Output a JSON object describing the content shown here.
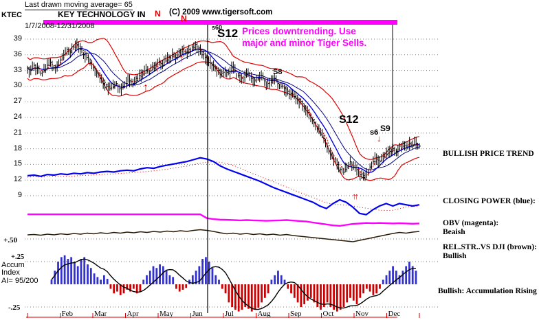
{
  "header": {
    "ma_note": "Last drawn moving average= 65",
    "ticker": "KTEC",
    "title": "KEY TECHNOLOGY IN",
    "copyright": "(C) 2009 www.tigersoft.com",
    "date_range": "1/7/2008-12/31/2008"
  },
  "annotation": {
    "line1": "Prices downtrending.  Use",
    "line2": "major and minor Tiger Sells.",
    "color": "#ff00ff"
  },
  "signals": {
    "n": "N",
    "s60": "s60",
    "s12_top": "S12",
    "s8": "S8",
    "s12_mid": "S12",
    "s6": "s6",
    "s9": "S9"
  },
  "icons": {
    "up_arrow": "↑",
    "double_up_arrow": "↑↑",
    "down_arrow": "↓"
  },
  "right_panel": {
    "price_trend": "BULLISH PRICE TREND",
    "closing_power": "CLOSING POWER (blue):",
    "obv_label": "OBV (magenta):",
    "obv_status": "Beaish",
    "relstr_label": "REL.STR..VS DJI (brown):",
    "relstr_status": "Bullish",
    "accum_status": "Bullish: Accumulation Rising"
  },
  "left_labels": {
    "plus50": "+.50",
    "plus25": "+.25",
    "accum_line1": "Accum",
    "accum_line2": "Index",
    "ai_value": "AI= 95/200",
    "minus25": "-.25"
  },
  "chart_data": {
    "type": "line",
    "subtype": "daily stock OHLC chart with band lines and indicator panels",
    "title": "KEY TECHNOLOGY IN (KTEC) 1/7/2008-12/31/2008",
    "price_axis_ticks": [
      39,
      36,
      33,
      30,
      27,
      24,
      21,
      18,
      15,
      12,
      9
    ],
    "price_ylim": [
      8,
      41
    ],
    "months": [
      "Feb",
      "Mar",
      "Apr",
      "May",
      "Jun",
      "Jul",
      "Aug",
      "Sep",
      "Oct",
      "Nov",
      "Dec"
    ],
    "accum_axis_ticks": [
      0.5,
      0.25,
      -0.25
    ],
    "series": [
      {
        "name": "close",
        "units": "USD",
        "values": [
          33.5,
          33,
          34,
          33.5,
          32.5,
          33,
          34,
          34.5,
          33.5,
          34,
          35,
          36,
          37,
          36.5,
          37.5,
          38,
          37,
          36,
          35.5,
          34.5,
          33.5,
          32.5,
          31.5,
          30.5,
          30,
          29.5,
          30,
          30.5,
          29.5,
          30,
          30.5,
          31,
          30.5,
          31.5,
          32,
          32.5,
          33,
          32.5,
          33.5,
          34,
          34.5,
          34,
          35,
          35.5,
          36,
          35.5,
          36.5,
          37,
          36.5,
          37,
          37.5,
          38,
          37,
          36,
          35.5,
          34.5,
          34,
          33.5,
          33,
          32.5,
          33,
          32.5,
          33.5,
          33,
          32,
          31.5,
          32,
          32.5,
          31.5,
          31,
          31.5,
          32,
          31,
          30.5,
          31,
          31.5,
          30.5,
          30,
          29.5,
          29,
          28.5,
          28,
          27.5,
          27,
          26,
          25,
          24,
          23,
          22,
          21,
          20,
          18.5,
          17,
          16,
          15,
          14,
          13.5,
          14.5,
          15.5,
          14.5,
          14,
          13,
          12.5,
          13.5,
          14.5,
          15.5,
          16,
          15.5,
          16.5,
          17,
          17.5,
          18,
          17.5,
          18.5,
          19,
          18.5,
          19,
          18.5,
          19,
          18.5
        ]
      },
      {
        "name": "closing_power",
        "units": "relative 0-100",
        "values": [
          69,
          70,
          68,
          71,
          70,
          72,
          71,
          73,
          72,
          74,
          73,
          75,
          76,
          75,
          77,
          78,
          77,
          80,
          82,
          81,
          84,
          86,
          88,
          90,
          92,
          95,
          98,
          96,
          92,
          85,
          80,
          76,
          72,
          68,
          64,
          60,
          55,
          50,
          46,
          42,
          38,
          34,
          30,
          26,
          20,
          16,
          24,
          30,
          26,
          18,
          8,
          6,
          14,
          20,
          24,
          20,
          24,
          22,
          20,
          22
        ]
      },
      {
        "name": "obv",
        "units": "relative 0-100",
        "values": [
          74,
          74,
          74,
          74,
          74,
          74,
          74,
          74,
          74,
          74,
          74,
          74,
          74,
          74,
          74,
          74,
          74,
          74,
          74,
          74,
          74,
          74,
          74,
          74,
          74,
          74,
          74,
          58,
          54,
          52,
          51,
          50,
          49,
          50,
          49,
          48,
          47,
          48,
          49,
          50,
          48,
          46,
          44,
          40,
          36,
          32,
          28,
          26,
          30,
          34,
          36,
          38,
          37,
          38,
          37,
          36,
          37,
          36,
          35,
          36
        ]
      },
      {
        "name": "rel_str_vs_dji",
        "units": "relative 0-100",
        "values": [
          40,
          41,
          39,
          42,
          40,
          43,
          41,
          44,
          42,
          45,
          43,
          46,
          44,
          47,
          45,
          48,
          46,
          49,
          47,
          50,
          48,
          51,
          49,
          52,
          50,
          53,
          55,
          53,
          50,
          46,
          43,
          45,
          42,
          44,
          41,
          43,
          40,
          42,
          39,
          41,
          38,
          36,
          34,
          32,
          30,
          28,
          26,
          24,
          22,
          20,
          24,
          28,
          32,
          36,
          40,
          44,
          47,
          45,
          48,
          50
        ]
      },
      {
        "name": "accum_index",
        "units": "AI units",
        "values": [
          0.05,
          0.15,
          0.25,
          0.3,
          0.32,
          0.28,
          0.3,
          0.25,
          0.2,
          0.28,
          0.3,
          0.22,
          0.18,
          0.12,
          0.08,
          0.05,
          0.1,
          0.06,
          -0.05,
          -0.1,
          -0.08,
          -0.12,
          -0.1,
          -0.06,
          -0.08,
          -0.05,
          -0.1,
          -0.08,
          0.05,
          0.1,
          0.15,
          0.2,
          0.18,
          0.22,
          0.2,
          0.15,
          0.1,
          0.08,
          -0.05,
          -0.08,
          -0.06,
          -0.04,
          0.05,
          0.1,
          0.15,
          0.2,
          0.28,
          0.3,
          0.25,
          0.18,
          0.1,
          0.05,
          -0.05,
          -0.1,
          -0.2,
          -0.25,
          -0.28,
          -0.3,
          -0.28,
          -0.25,
          -0.27,
          -0.3,
          -0.28,
          -0.26,
          -0.2,
          -0.15,
          -0.1,
          0.05,
          0.1,
          0.15,
          0.1,
          0.05,
          -0.05,
          -0.1,
          -0.15,
          -0.2,
          -0.25,
          -0.22,
          -0.18,
          -0.15,
          -0.2,
          -0.25,
          -0.28,
          -0.25,
          -0.2,
          -0.25,
          -0.28,
          -0.3,
          -0.28,
          -0.25,
          -0.2,
          -0.15,
          -0.18,
          -0.22,
          -0.15,
          -0.1,
          -0.05,
          -0.08,
          -0.12,
          -0.1,
          -0.05,
          0.05,
          0.1,
          0.15,
          0.2,
          0.15,
          0.1,
          0.15,
          0.2,
          0.25,
          0.2,
          0.15
        ]
      }
    ],
    "colors": {
      "price_bars": "#000000",
      "bands": "#dd0000",
      "ma_blue": "#0000dd",
      "ma_navy": "#000080",
      "closing_power": "#0000ee",
      "obv": "#ff00ff",
      "rel_str": "#2a1a05",
      "accum_pos": "#3333cc",
      "accum_neg": "#cc0000",
      "highlight_bar": "#ff00ff"
    }
  }
}
